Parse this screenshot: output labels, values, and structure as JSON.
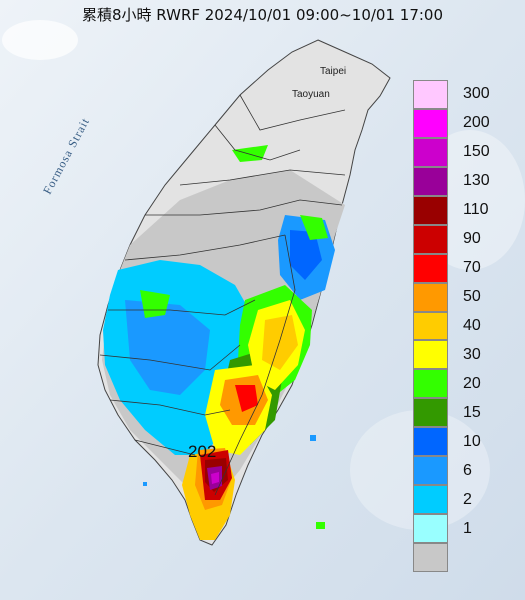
{
  "title": "累積8小時 RWRF 2024/10/01 09:00~10/01 17:00",
  "map_labels": {
    "strait": "Formosa Strait",
    "taipei": "Taipei",
    "taoyuan": "Taoyuan",
    "max_value": "202"
  },
  "legend": [
    {
      "label": "300",
      "color": "#ffc8ff"
    },
    {
      "label": "200",
      "color": "#ff00ff"
    },
    {
      "label": "150",
      "color": "#cc00cc"
    },
    {
      "label": "130",
      "color": "#990099"
    },
    {
      "label": "110",
      "color": "#990000"
    },
    {
      "label": "90",
      "color": "#cc0000"
    },
    {
      "label": "70",
      "color": "#ff0000"
    },
    {
      "label": "50",
      "color": "#ff9900"
    },
    {
      "label": "40",
      "color": "#ffcc00"
    },
    {
      "label": "30",
      "color": "#ffff00"
    },
    {
      "label": "20",
      "color": "#33ff00"
    },
    {
      "label": "15",
      "color": "#339900"
    },
    {
      "label": "10",
      "color": "#0066ff"
    },
    {
      "label": "6",
      "color": "#1a99ff"
    },
    {
      "label": "2",
      "color": "#00ccff"
    },
    {
      "label": "1",
      "color": "#99ffff"
    },
    {
      "label": "",
      "color": "#c8c8c8"
    }
  ]
}
